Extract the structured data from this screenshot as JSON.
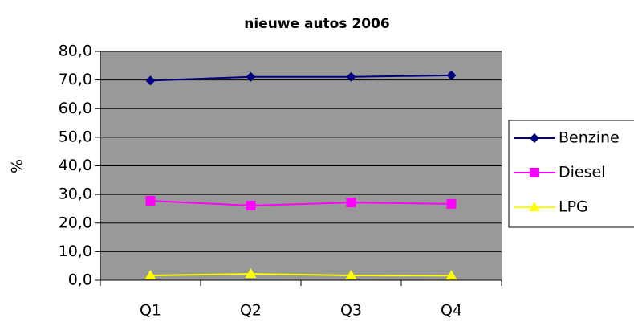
{
  "chart_data": {
    "type": "line",
    "title": "nieuwe autos 2006",
    "y_label": "%",
    "categories": [
      "Q1",
      "Q2",
      "Q3",
      "Q4"
    ],
    "series": [
      {
        "name": "Benzine",
        "color": "#000080",
        "marker": "diamond",
        "values": [
          69.8,
          71.1,
          71.1,
          71.6
        ]
      },
      {
        "name": "Diesel",
        "color": "#ff00ff",
        "marker": "square",
        "values": [
          27.8,
          26.1,
          27.2,
          26.7
        ]
      },
      {
        "name": "LPG",
        "color": "#ffff00",
        "marker": "triangle",
        "values": [
          1.7,
          2.2,
          1.7,
          1.6
        ]
      }
    ],
    "ylim": [
      0,
      80
    ],
    "yticks": [
      {
        "value": 0,
        "label": "0,0"
      },
      {
        "value": 10,
        "label": "10,0"
      },
      {
        "value": 20,
        "label": "20,0"
      },
      {
        "value": 30,
        "label": "30,0"
      },
      {
        "value": 40,
        "label": "40,0"
      },
      {
        "value": 50,
        "label": "50,0"
      },
      {
        "value": 60,
        "label": "60,0"
      },
      {
        "value": 70,
        "label": "70,0"
      },
      {
        "value": 80,
        "label": "80,0"
      }
    ],
    "grid": true,
    "plot_background": "#999999",
    "legend": "right"
  }
}
